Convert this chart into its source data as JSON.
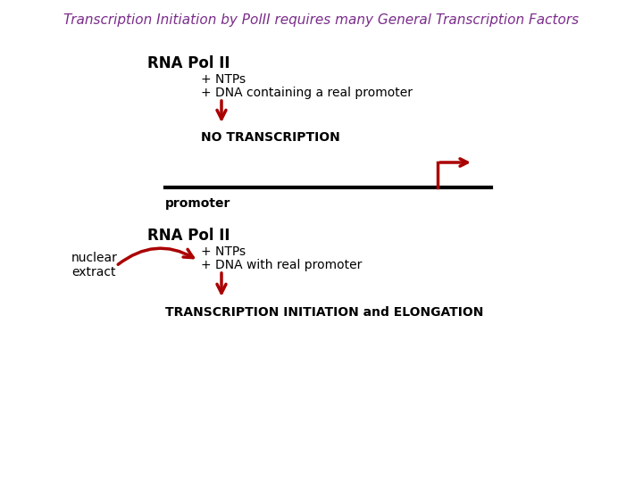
{
  "title": "Transcription Initiation by PolII requires many General Transcription Factors",
  "title_color": "#7B2D8B",
  "title_fontsize": 11,
  "bg_color": "#FFFFFF",
  "arrow_color": "#AA0000",
  "text_color": "#000000",
  "rna_pol_ii_label": "RNA Pol II",
  "ntps_label": "+ NTPs",
  "dna_label1": "+ DNA containing a real promoter",
  "no_transcription_label": "NO TRANSCRIPTION",
  "promoter_label": "promoter",
  "dna_label2": "+ DNA with real promoter",
  "nuclear_extract_label": "nuclear\nextract",
  "transcription_label": "TRANSCRIPTION INITIATION and ELONGATION",
  "label_fontsize": 10,
  "rna_fontsize": 12
}
